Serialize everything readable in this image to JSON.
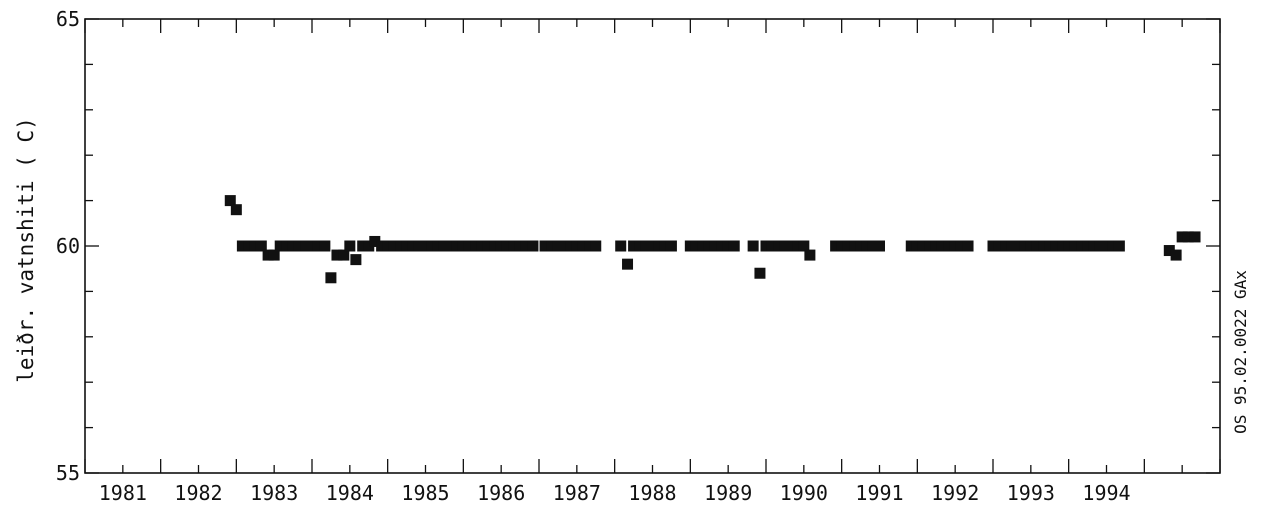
{
  "chart_data": {
    "type": "scatter",
    "ylabel": "leiðr. vatnshiti ( C)",
    "side_label": "OS 95.02.0022 GAx",
    "xlim": [
      1980,
      1995
    ],
    "ylim": [
      55,
      65
    ],
    "x_tick_labels": [
      "1981",
      "1982",
      "1983",
      "1984",
      "1985",
      "1986",
      "1987",
      "1988",
      "1989",
      "1990",
      "1991",
      "1992",
      "1993",
      "1994"
    ],
    "y_tick_labels": [
      "55",
      "60",
      "65"
    ],
    "grid": false,
    "series": [
      {
        "marker": "square",
        "color": "#111111",
        "points": [
          [
            1981.92,
            61.0
          ],
          [
            1982.0,
            60.8
          ],
          [
            1982.08,
            60.0
          ],
          [
            1982.17,
            60.0
          ],
          [
            1982.25,
            60.0
          ],
          [
            1982.33,
            60.0
          ],
          [
            1982.42,
            59.8
          ],
          [
            1982.5,
            59.8
          ],
          [
            1982.58,
            60.0
          ],
          [
            1982.67,
            60.0
          ],
          [
            1982.75,
            60.0
          ],
          [
            1982.83,
            60.0
          ],
          [
            1982.92,
            60.0
          ],
          [
            1983.0,
            60.0
          ],
          [
            1983.08,
            60.0
          ],
          [
            1983.17,
            60.0
          ],
          [
            1983.25,
            59.3
          ],
          [
            1983.33,
            59.8
          ],
          [
            1983.42,
            59.8
          ],
          [
            1983.5,
            60.0
          ],
          [
            1983.58,
            59.7
          ],
          [
            1983.67,
            60.0
          ],
          [
            1983.75,
            60.0
          ],
          [
            1983.83,
            60.1
          ],
          [
            1983.92,
            60.0
          ],
          [
            1984.0,
            60.0
          ],
          [
            1984.08,
            60.0
          ],
          [
            1984.17,
            60.0
          ],
          [
            1984.25,
            60.0
          ],
          [
            1984.33,
            60.0
          ],
          [
            1984.42,
            60.0
          ],
          [
            1984.5,
            60.0
          ],
          [
            1984.58,
            60.0
          ],
          [
            1984.67,
            60.0
          ],
          [
            1984.75,
            60.0
          ],
          [
            1984.83,
            60.0
          ],
          [
            1984.92,
            60.0
          ],
          [
            1985.0,
            60.0
          ],
          [
            1985.08,
            60.0
          ],
          [
            1985.17,
            60.0
          ],
          [
            1985.25,
            60.0
          ],
          [
            1985.33,
            60.0
          ],
          [
            1985.42,
            60.0
          ],
          [
            1985.5,
            60.0
          ],
          [
            1985.58,
            60.0
          ],
          [
            1985.67,
            60.0
          ],
          [
            1985.75,
            60.0
          ],
          [
            1985.83,
            60.0
          ],
          [
            1985.92,
            60.0
          ],
          [
            1986.08,
            60.0
          ],
          [
            1986.17,
            60.0
          ],
          [
            1986.25,
            60.0
          ],
          [
            1986.33,
            60.0
          ],
          [
            1986.42,
            60.0
          ],
          [
            1986.5,
            60.0
          ],
          [
            1986.58,
            60.0
          ],
          [
            1986.67,
            60.0
          ],
          [
            1986.75,
            60.0
          ],
          [
            1987.08,
            60.0
          ],
          [
            1987.17,
            59.6
          ],
          [
            1987.25,
            60.0
          ],
          [
            1987.33,
            60.0
          ],
          [
            1987.42,
            60.0
          ],
          [
            1987.5,
            60.0
          ],
          [
            1987.58,
            60.0
          ],
          [
            1987.67,
            60.0
          ],
          [
            1987.75,
            60.0
          ],
          [
            1988.0,
            60.0
          ],
          [
            1988.08,
            60.0
          ],
          [
            1988.17,
            60.0
          ],
          [
            1988.25,
            60.0
          ],
          [
            1988.33,
            60.0
          ],
          [
            1988.42,
            60.0
          ],
          [
            1988.5,
            60.0
          ],
          [
            1988.58,
            60.0
          ],
          [
            1988.83,
            60.0
          ],
          [
            1988.92,
            59.4
          ],
          [
            1989.0,
            60.0
          ],
          [
            1989.08,
            60.0
          ],
          [
            1989.17,
            60.0
          ],
          [
            1989.25,
            60.0
          ],
          [
            1989.33,
            60.0
          ],
          [
            1989.42,
            60.0
          ],
          [
            1989.5,
            60.0
          ],
          [
            1989.58,
            59.8
          ],
          [
            1989.92,
            60.0
          ],
          [
            1990.0,
            60.0
          ],
          [
            1990.08,
            60.0
          ],
          [
            1990.17,
            60.0
          ],
          [
            1990.25,
            60.0
          ],
          [
            1990.33,
            60.0
          ],
          [
            1990.42,
            60.0
          ],
          [
            1990.5,
            60.0
          ],
          [
            1990.92,
            60.0
          ],
          [
            1991.0,
            60.0
          ],
          [
            1991.08,
            60.0
          ],
          [
            1991.17,
            60.0
          ],
          [
            1991.25,
            60.0
          ],
          [
            1991.33,
            60.0
          ],
          [
            1991.42,
            60.0
          ],
          [
            1991.5,
            60.0
          ],
          [
            1991.58,
            60.0
          ],
          [
            1991.67,
            60.0
          ],
          [
            1992.0,
            60.0
          ],
          [
            1992.08,
            60.0
          ],
          [
            1992.17,
            60.0
          ],
          [
            1992.25,
            60.0
          ],
          [
            1992.33,
            60.0
          ],
          [
            1992.42,
            60.0
          ],
          [
            1992.5,
            60.0
          ],
          [
            1992.58,
            60.0
          ],
          [
            1992.67,
            60.0
          ],
          [
            1992.75,
            60.0
          ],
          [
            1992.83,
            60.0
          ],
          [
            1992.92,
            60.0
          ],
          [
            1993.0,
            60.0
          ],
          [
            1993.08,
            60.0
          ],
          [
            1993.17,
            60.0
          ],
          [
            1993.25,
            60.0
          ],
          [
            1993.33,
            60.0
          ],
          [
            1993.42,
            60.0
          ],
          [
            1993.5,
            60.0
          ],
          [
            1993.58,
            60.0
          ],
          [
            1993.67,
            60.0
          ],
          [
            1994.33,
            59.9
          ],
          [
            1994.42,
            59.8
          ],
          [
            1994.5,
            60.2
          ],
          [
            1994.58,
            60.2
          ],
          [
            1994.67,
            60.2
          ]
        ]
      }
    ]
  }
}
